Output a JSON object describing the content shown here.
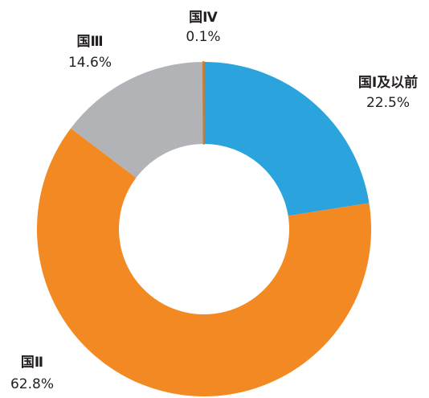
{
  "chart_data": {
    "type": "donut",
    "categories": [
      "国Ⅰ及以前",
      "国Ⅱ",
      "国Ⅲ",
      "国Ⅳ"
    ],
    "values": [
      22.5,
      62.8,
      14.6,
      0.1
    ],
    "value_labels": [
      "22.5%",
      "62.8%",
      "14.6%",
      "0.1%"
    ],
    "colors": [
      "#2ba3dc",
      "#f28923",
      "#b1b3b6",
      "#d07a2a"
    ]
  }
}
